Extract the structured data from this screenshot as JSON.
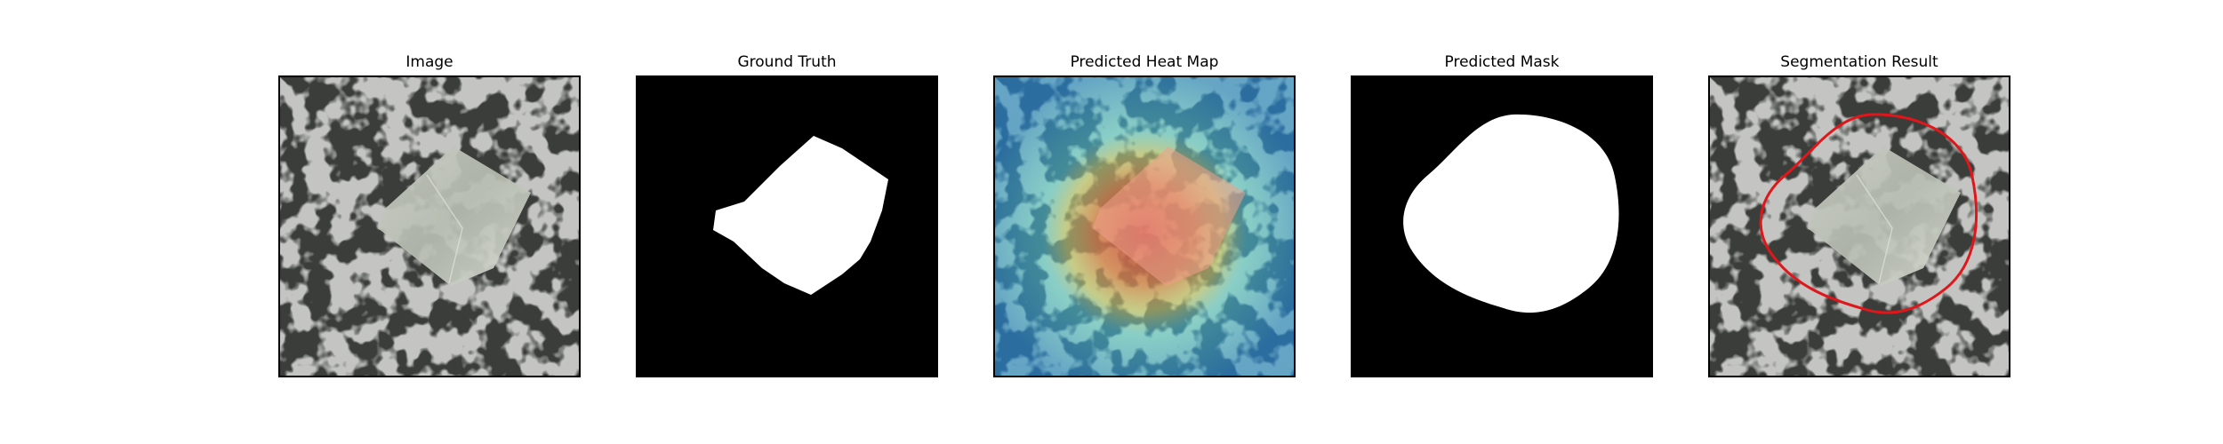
{
  "figure": {
    "panels": [
      {
        "title": "Image"
      },
      {
        "title": "Ground Truth"
      },
      {
        "title": "Predicted Heat Map"
      },
      {
        "title": "Predicted Mask"
      },
      {
        "title": "Segmentation Result"
      }
    ]
  },
  "colors": {
    "background": "#ffffff",
    "mask_foreground": "#ffffff",
    "mask_background": "#000000",
    "contour": "#e0161a",
    "heat_hot": "#d2453a",
    "heat_warm": "#e6b33a",
    "heat_cool": "#2aa6c8"
  }
}
